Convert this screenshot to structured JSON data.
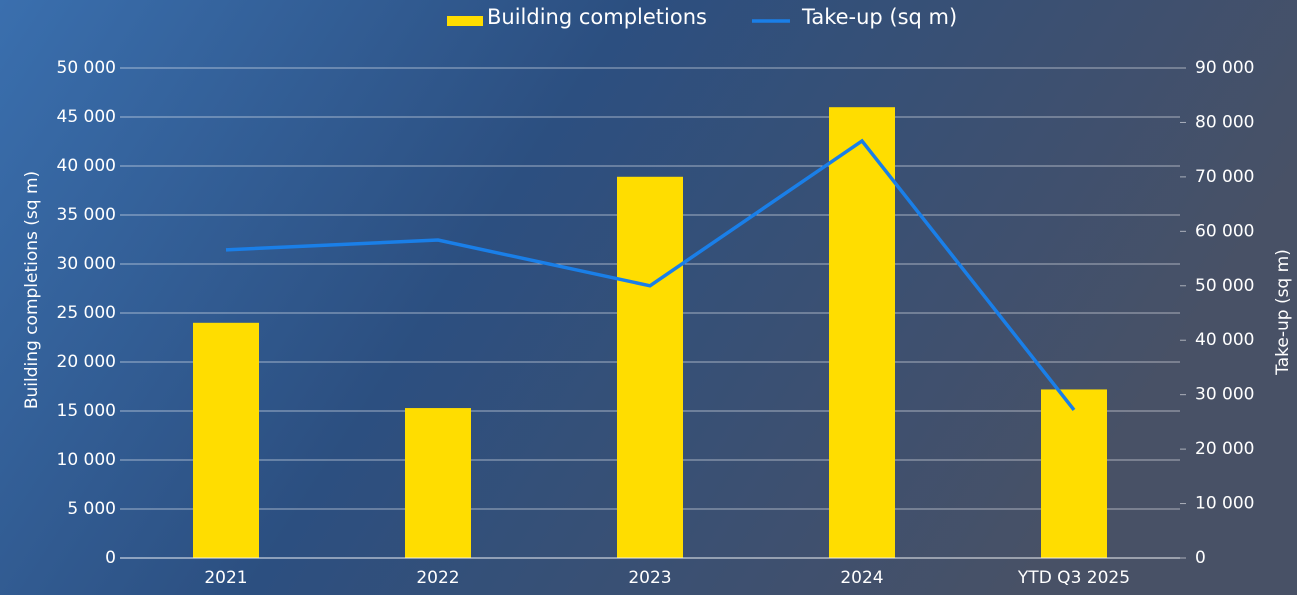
{
  "chart_data": {
    "type": "bar-line",
    "legend_position": "top",
    "categories": [
      "2021",
      "2022",
      "2023",
      "2024",
      "YTD Q3 2025"
    ],
    "series": [
      {
        "name": "Building completions",
        "type": "bar",
        "color": "#ffdd00",
        "axis": "y",
        "values": [
          24000,
          15300,
          38900,
          46000,
          17200
        ]
      },
      {
        "name": "Take-up (sq m)",
        "type": "line",
        "color": "#1a7fe8",
        "axis": "y2",
        "values": [
          56600,
          58400,
          50000,
          76600,
          27200
        ]
      }
    ],
    "y_label": "Building completions (sq m)",
    "y2_label": "Take-up (sq m)",
    "ylim": [
      0,
      50000
    ],
    "yticks": [
      0,
      {
        "value": 5000,
        "label": "5 000"
      },
      {
        "value": 10000,
        "label": "10 000"
      },
      {
        "value": 15000,
        "label": "15 000"
      },
      {
        "value": 20000,
        "label": "20 000"
      },
      {
        "value": 25000,
        "label": "25 000"
      },
      {
        "value": 30000,
        "label": "30 000"
      },
      {
        "value": 35000,
        "label": "35 000"
      },
      {
        "value": 40000,
        "label": "40 000"
      },
      {
        "value": 45000,
        "label": "45 000"
      },
      {
        "value": 50000,
        "label": "50 000"
      }
    ],
    "y2lim": [
      0,
      90000
    ],
    "y2ticks": [
      0,
      {
        "value": 10000,
        "label": "10 000"
      },
      {
        "value": 20000,
        "label": "20 000"
      },
      {
        "value": 30000,
        "label": "30 000"
      },
      {
        "value": 40000,
        "label": "40 000"
      },
      {
        "value": 50000,
        "label": "50 000"
      },
      {
        "value": 60000,
        "label": "60 000"
      },
      {
        "value": 70000,
        "label": "70 000"
      },
      {
        "value": 80000,
        "label": "80 000"
      },
      {
        "value": 90000,
        "label": "90 000"
      }
    ],
    "grid": true
  }
}
